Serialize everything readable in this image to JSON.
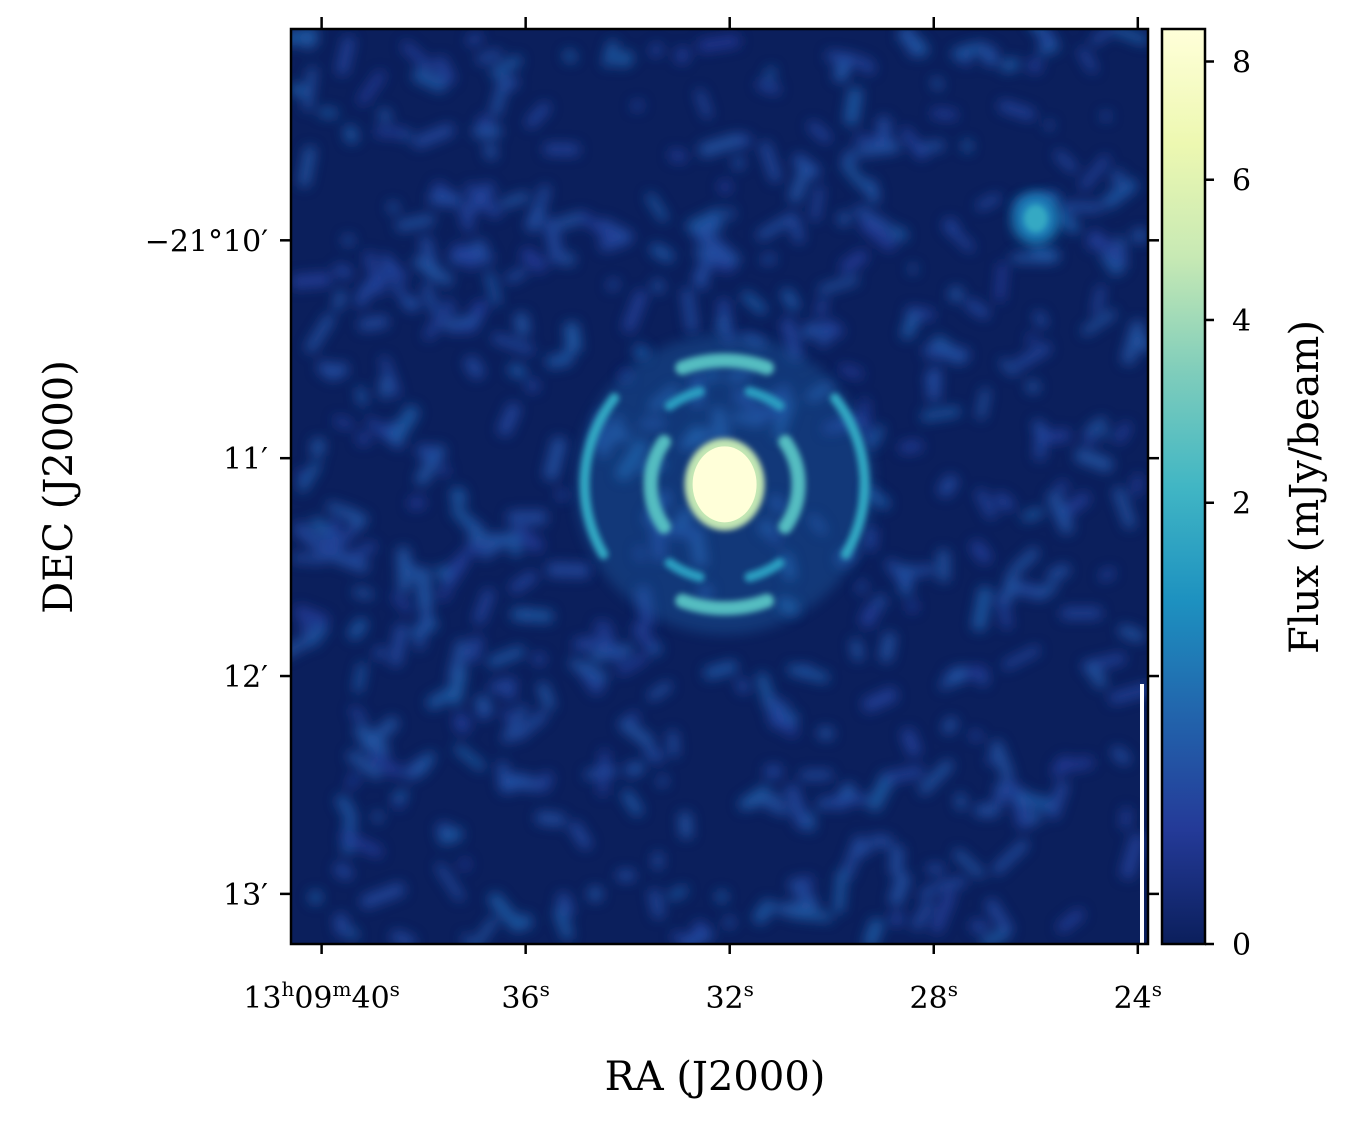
{
  "chart_data": {
    "type": "heatmap",
    "xlabel": "RA (J2000)",
    "ylabel": "DEC (J2000)",
    "x_ticks": [
      {
        "value": 40,
        "h": "13",
        "m": "09",
        "s": "40"
      },
      {
        "value": 36,
        "s": "36"
      },
      {
        "value": 32,
        "s": "32"
      },
      {
        "value": 28,
        "s": "28"
      },
      {
        "value": 24,
        "s": "24"
      }
    ],
    "x_range_seconds": [
      40.6,
      23.8
    ],
    "y_ticks": [
      {
        "value_arcmin": -10,
        "label": "−21°10′"
      },
      {
        "value_arcmin": -11,
        "label": "11′"
      },
      {
        "value_arcmin": -12,
        "label": "12′"
      },
      {
        "value_arcmin": -13,
        "label": "13′"
      }
    ],
    "y_range_arcmin": [
      -9.03,
      -13.23
    ],
    "colorbar": {
      "label": "Flux (mJy/beam)",
      "colormap": "YlGnBu_r",
      "ticks": [
        0,
        2,
        4,
        6,
        8
      ],
      "range": [
        0,
        8.6
      ],
      "stretch": "sqrt"
    },
    "features": [
      {
        "name": "central source",
        "ra_s": 32.1,
        "dec_arcmin": -11.12,
        "peak": 8.6
      },
      {
        "name": "ring",
        "ra_s": 32.1,
        "dec_arcmin": -11.12,
        "value": 2.5
      },
      {
        "name": "secondary source",
        "ra_s": 26.0,
        "dec_arcmin": -9.9,
        "peak": 1.8
      }
    ],
    "background": {
      "color": "#0b1f5c",
      "noise_level": 0.4
    }
  },
  "colors": {
    "background": "#0b1f5c",
    "colorbar_stops": [
      "#0b1f5c",
      "#243a98",
      "#2264ac",
      "#1d91c0",
      "#41b6c4",
      "#7fcdbb",
      "#c7e9b4",
      "#edf8b1",
      "#ffffd9"
    ]
  }
}
